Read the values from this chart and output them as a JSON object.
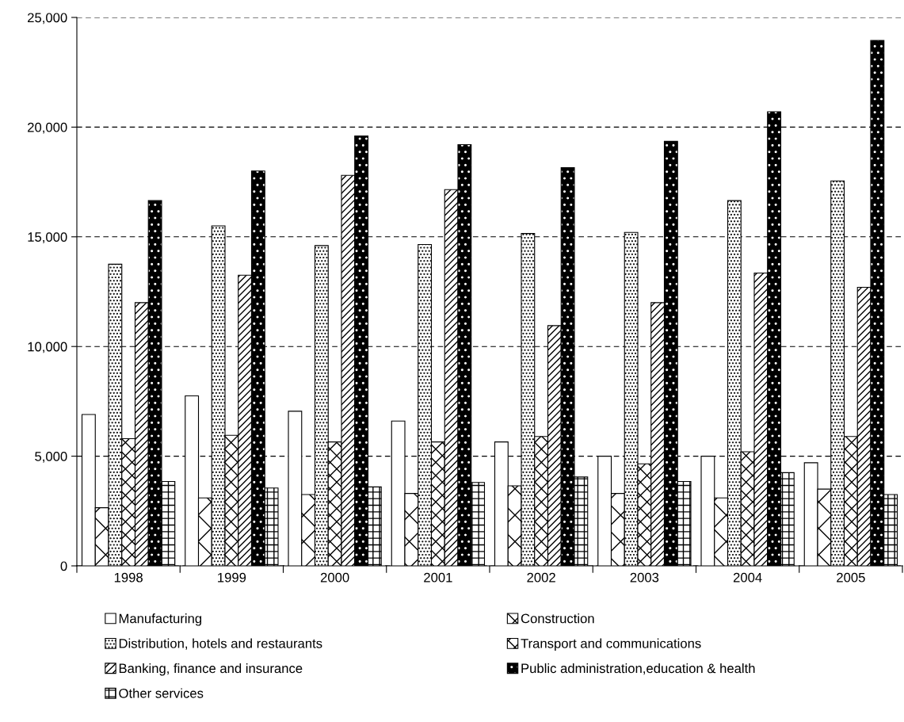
{
  "chart_data": {
    "type": "bar",
    "categories": [
      "1998",
      "1999",
      "2000",
      "2001",
      "2002",
      "2003",
      "2004",
      "2005"
    ],
    "series": [
      {
        "name": "Manufacturing",
        "color": "#ffffff",
        "values": [
          6900,
          7750,
          7050,
          6600,
          5650,
          5000,
          5000,
          4700
        ]
      },
      {
        "name": "Construction",
        "color": "#000000",
        "values": [
          2650,
          3100,
          3250,
          3300,
          3650,
          3300,
          3100,
          3500
        ]
      },
      {
        "name": "Distribution, hotels and restaurants",
        "color": "#000000",
        "values": [
          13750,
          15500,
          14600,
          14650,
          15150,
          15200,
          16650,
          17550
        ]
      },
      {
        "name": "Transport and communications",
        "color": "#000000",
        "values": [
          5800,
          5950,
          5650,
          5650,
          5900,
          4650,
          5200,
          5900
        ]
      },
      {
        "name": "Banking, finance and insurance",
        "color": "#000000",
        "values": [
          12000,
          13250,
          17800,
          17150,
          10950,
          12000,
          13350,
          12700
        ]
      },
      {
        "name": "Public administration,education & health",
        "color": "#000000",
        "values": [
          16650,
          18000,
          19600,
          19200,
          18150,
          19350,
          20700,
          23950
        ]
      },
      {
        "name": "Other services",
        "color": "#000000",
        "values": [
          3850,
          3550,
          3600,
          3800,
          4050,
          3850,
          4250,
          3250
        ]
      }
    ],
    "ylim": [
      0,
      25000
    ],
    "yticks": [
      0,
      {
        "value": 5000,
        "label": "5,000"
      },
      {
        "value": 10000,
        "label": "10,000"
      },
      {
        "value": 15000,
        "label": "15,000"
      },
      {
        "value": 20000,
        "label": "20,000"
      },
      {
        "value": 25000,
        "label": "25,000"
      }
    ],
    "grid": "y",
    "legend": "bottom"
  }
}
